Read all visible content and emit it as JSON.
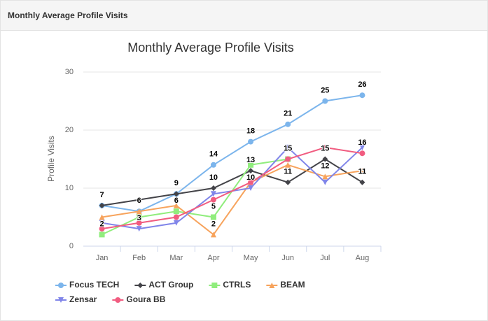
{
  "panel_title": "Monthly Average Profile Visits",
  "chart_data": {
    "type": "line",
    "title": "Monthly Average Profile Visits",
    "y_label": "Profile Visits",
    "categories": [
      "Jan",
      "Feb",
      "Mar",
      "Apr",
      "May",
      "Jun",
      "Jul",
      "Aug"
    ],
    "ylim": [
      0,
      30
    ],
    "yticks": [
      0,
      10,
      20,
      30
    ],
    "grid": true,
    "legend": "bottom",
    "series": [
      {
        "name": "Focus TECH",
        "color": "#7cb5ec",
        "marker": "circle",
        "values": [
          7,
          6,
          9,
          14,
          18,
          21,
          25,
          26
        ],
        "value_labels": [
          "7",
          "6",
          "9",
          "14",
          "18",
          "21",
          "25",
          "26"
        ]
      },
      {
        "name": "ACT Group",
        "color": "#434348",
        "marker": "diamond",
        "values": [
          7,
          8,
          9,
          10,
          13,
          11,
          15,
          11
        ],
        "value_labels": [
          null,
          null,
          null,
          "10",
          "13",
          "11",
          "15",
          "11"
        ]
      },
      {
        "name": "CTRLS",
        "color": "#90ed7d",
        "marker": "square",
        "values": [
          2,
          5,
          6,
          5,
          14,
          15,
          null,
          null
        ],
        "value_labels": [
          "2",
          null,
          "6",
          "5",
          null,
          "15",
          null,
          null
        ]
      },
      {
        "name": "BEAM",
        "color": "#f7a35c",
        "marker": "triangle",
        "values": [
          5,
          6,
          7,
          2,
          11,
          14,
          12,
          13
        ],
        "value_labels": [
          null,
          null,
          null,
          "2",
          null,
          null,
          "12",
          null
        ]
      },
      {
        "name": "Zensar",
        "color": "#8085e9",
        "marker": "triangle-down",
        "values": [
          4,
          3,
          4,
          9,
          10,
          17,
          11,
          17
        ],
        "value_labels": [
          null,
          "3",
          null,
          null,
          "10",
          null,
          null,
          null
        ]
      },
      {
        "name": "Goura BB",
        "color": "#f15c80",
        "marker": "circle",
        "values": [
          3,
          4,
          5,
          8,
          11,
          15,
          17,
          16
        ],
        "value_labels": [
          null,
          null,
          null,
          null,
          null,
          null,
          null,
          "16"
        ]
      }
    ]
  }
}
